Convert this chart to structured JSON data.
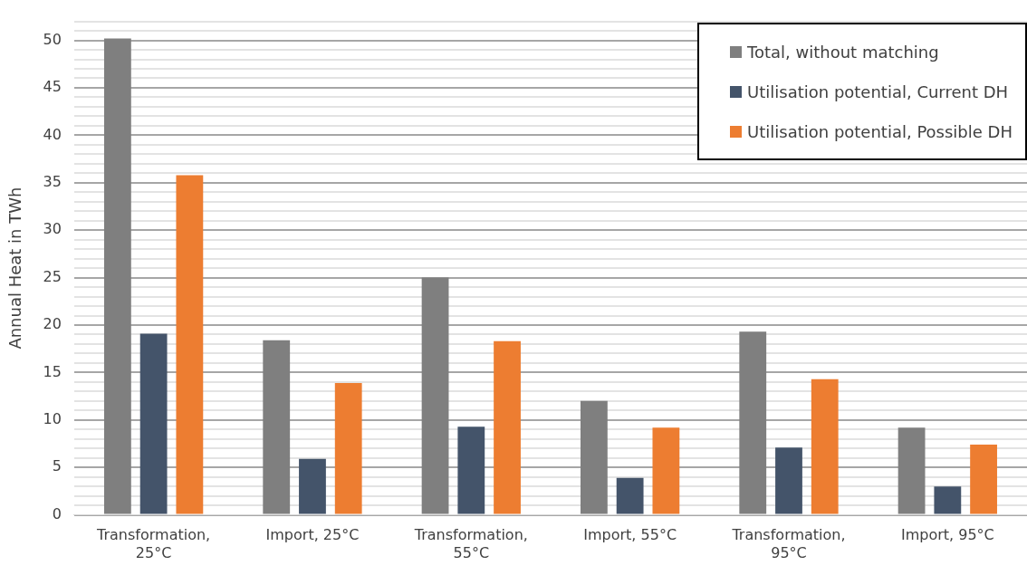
{
  "chart_data": {
    "type": "bar",
    "ylabel": "Annual Heat in TWh",
    "categories": [
      "Transformation, 25°C",
      "Import, 25°C",
      "Transformation, 55°C",
      "Import, 55°C",
      "Transformation, 95°C",
      "Import, 95°C"
    ],
    "series": [
      {
        "name": "Total, without matching",
        "color": "#7f7f7f",
        "values": [
          50.2,
          18.4,
          25.0,
          12.0,
          19.3,
          9.2
        ]
      },
      {
        "name": "Utilisation potential, Current DH",
        "color": "#44546a",
        "values": [
          19.1,
          5.9,
          9.3,
          3.9,
          7.1,
          3.0
        ]
      },
      {
        "name": "Utilisation potential, Possible DH",
        "color": "#ed7d31",
        "values": [
          35.8,
          13.9,
          18.3,
          9.2,
          14.3,
          7.4
        ]
      }
    ],
    "ylim": [
      0,
      52
    ],
    "yticks": [
      0,
      {
        "value": 1,
        "label": null
      },
      {
        "value": 2,
        "label": null
      },
      {
        "value": 3,
        "label": null
      },
      {
        "value": 4,
        "label": null
      },
      5,
      {
        "value": 6,
        "label": null
      },
      {
        "value": 7,
        "label": null
      },
      {
        "value": 8,
        "label": null
      },
      {
        "value": 9,
        "label": null
      },
      10,
      {
        "value": 11,
        "label": null
      },
      {
        "value": 12,
        "label": null
      },
      {
        "value": 13,
        "label": null
      },
      {
        "value": 14,
        "label": null
      },
      15,
      {
        "value": 16,
        "label": null
      },
      {
        "value": 17,
        "label": null
      },
      {
        "value": 18,
        "label": null
      },
      {
        "value": 19,
        "label": null
      },
      20,
      {
        "value": 21,
        "label": null
      },
      {
        "value": 22,
        "label": null
      },
      {
        "value": 23,
        "label": null
      },
      {
        "value": 24,
        "label": null
      },
      25,
      {
        "value": 26,
        "label": null
      },
      {
        "value": 27,
        "label": null
      },
      {
        "value": 28,
        "label": null
      },
      {
        "value": 29,
        "label": null
      },
      30,
      {
        "value": 31,
        "label": null
      },
      {
        "value": 32,
        "label": null
      },
      {
        "value": 33,
        "label": null
      },
      {
        "value": 34,
        "label": null
      },
      35,
      {
        "value": 36,
        "label": null
      },
      {
        "value": 37,
        "label": null
      },
      {
        "value": 38,
        "label": null
      },
      {
        "value": 39,
        "label": null
      },
      40,
      {
        "value": 41,
        "label": null
      },
      {
        "value": 42,
        "label": null
      },
      {
        "value": 43,
        "label": null
      },
      {
        "value": 44,
        "label": null
      },
      45,
      {
        "value": 46,
        "label": null
      },
      {
        "value": 47,
        "label": null
      },
      {
        "value": 48,
        "label": null
      },
      {
        "value": 49,
        "label": null
      },
      50,
      {
        "value": 51,
        "label": null
      },
      {
        "value": 52,
        "label": null
      }
    ],
    "grid": "y",
    "legend": "top right"
  }
}
